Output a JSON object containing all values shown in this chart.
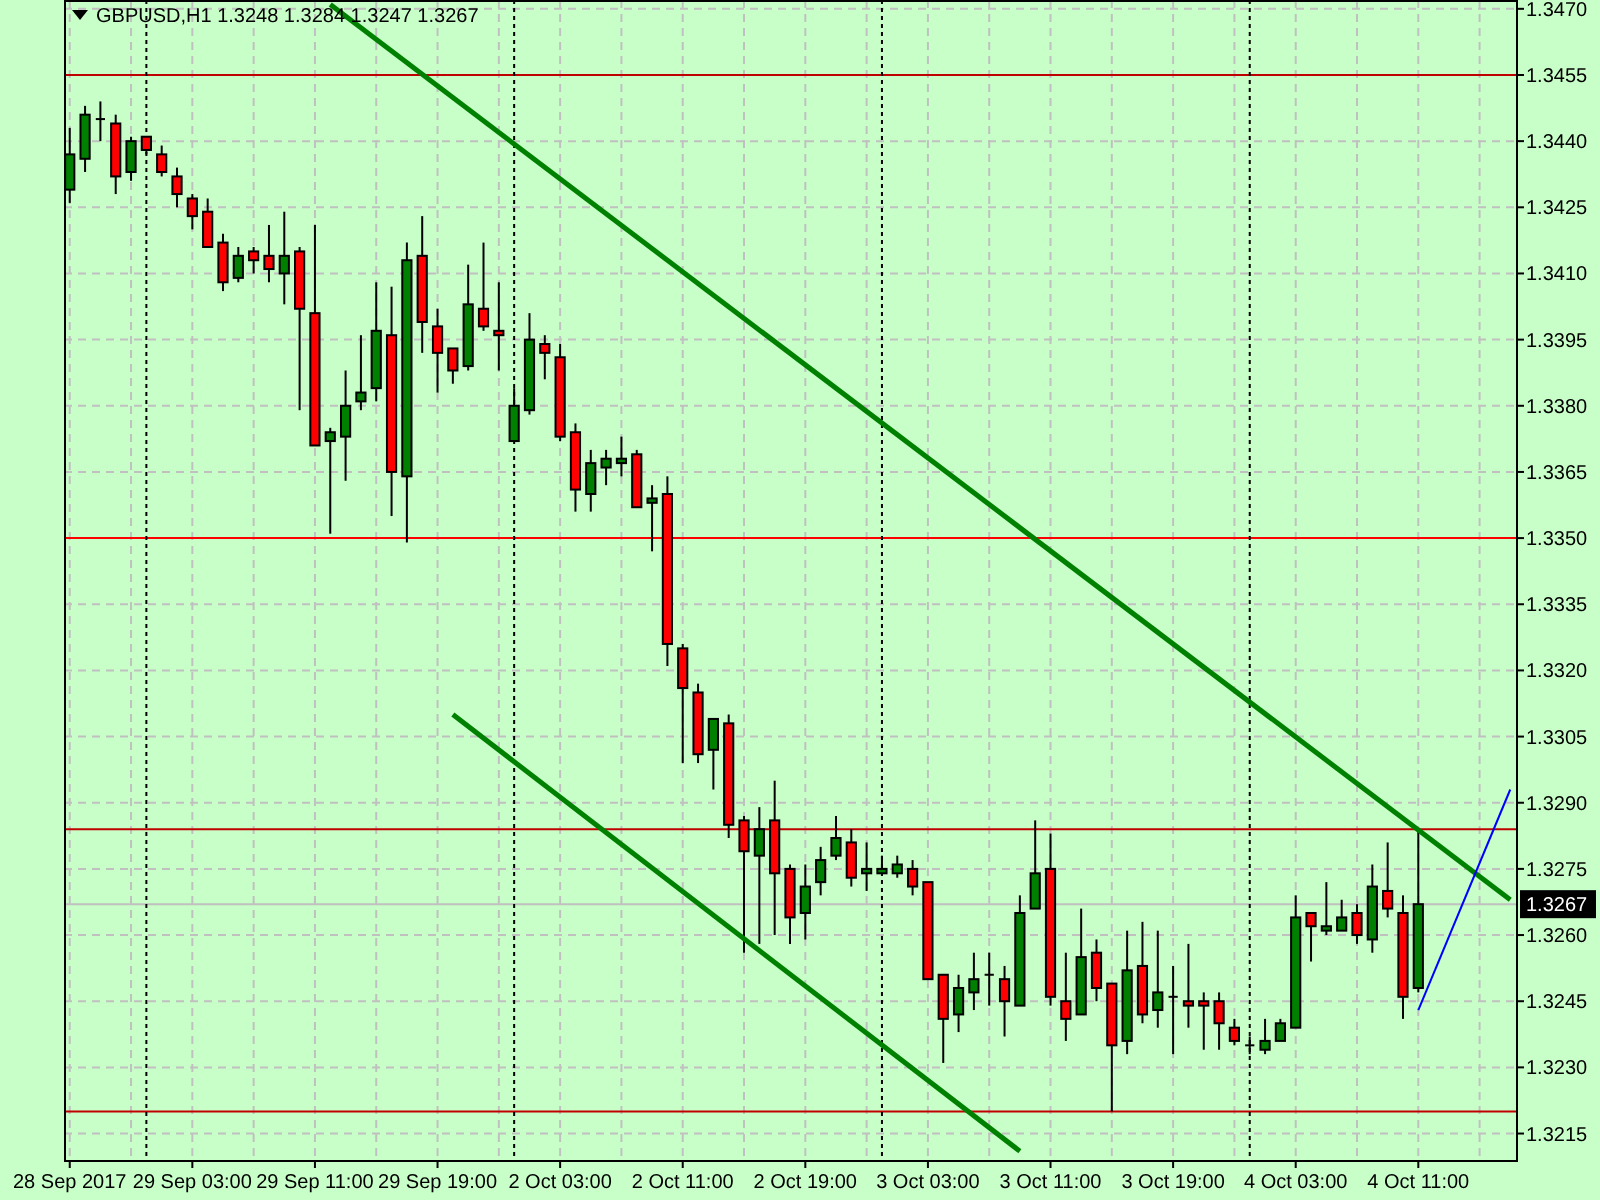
{
  "chart_data": {
    "type": "candlestick",
    "title": "GBPUSD,H1  1.3248 1.3284 1.3247 1.3267",
    "categories": [
      "28 Sep 2017",
      null,
      null,
      null,
      null,
      null,
      null,
      null,
      "29 Sep 03:00",
      null,
      null,
      null,
      null,
      null,
      null,
      null,
      "29 Sep 11:00",
      null,
      null,
      null,
      null,
      null,
      null,
      null,
      "29 Sep 19:00",
      null,
      null,
      null,
      null,
      null,
      null,
      null,
      "2 Oct 03:00",
      null,
      null,
      null,
      null,
      null,
      null,
      null,
      "2 Oct 11:00",
      null,
      null,
      null,
      null,
      null,
      null,
      null,
      "2 Oct 19:00",
      null,
      null,
      null,
      null,
      null,
      null,
      null,
      "3 Oct 03:00",
      null,
      null,
      null,
      null,
      null,
      null,
      null,
      "3 Oct 11:00",
      null,
      null,
      null,
      null,
      null,
      null,
      null,
      "3 Oct 19:00",
      null,
      null,
      null,
      null,
      null,
      null,
      null,
      "4 Oct 03:00",
      null,
      null,
      null,
      null,
      null,
      null,
      null,
      "4 Oct 11:00",
      null,
      null,
      null,
      null,
      null,
      null
    ],
    "ohlc": [
      [
        1.3429,
        1.3443,
        1.3426,
        1.3437
      ],
      [
        1.3436,
        1.3448,
        1.3433,
        1.3446
      ],
      [
        1.3445,
        1.3449,
        1.344,
        1.3445
      ],
      [
        1.3444,
        1.3446,
        1.3428,
        1.3432
      ],
      [
        1.3433,
        1.3441,
        1.3431,
        1.344
      ],
      [
        1.3441,
        1.3441,
        1.3437,
        1.3438
      ],
      [
        1.3437,
        1.3439,
        1.3432,
        1.3433
      ],
      [
        1.3432,
        1.3434,
        1.3425,
        1.3428
      ],
      [
        1.3427,
        1.3428,
        1.342,
        1.3423
      ],
      [
        1.3424,
        1.3427,
        1.3416,
        1.3416
      ],
      [
        1.3417,
        1.3419,
        1.3406,
        1.3408
      ],
      [
        1.3409,
        1.3416,
        1.3408,
        1.3414
      ],
      [
        1.3415,
        1.3416,
        1.341,
        1.3413
      ],
      [
        1.3414,
        1.3421,
        1.3408,
        1.3411
      ],
      [
        1.341,
        1.3424,
        1.3403,
        1.3414
      ],
      [
        1.3415,
        1.3416,
        1.3379,
        1.3402
      ],
      [
        1.3401,
        1.3421,
        1.3371,
        1.3371
      ],
      [
        1.3372,
        1.3375,
        1.3351,
        1.3374
      ],
      [
        1.3373,
        1.3388,
        1.3363,
        1.338
      ],
      [
        1.3381,
        1.3396,
        1.3379,
        1.3383
      ],
      [
        1.3384,
        1.3408,
        1.3381,
        1.3397
      ],
      [
        1.3396,
        1.3407,
        1.3355,
        1.3365
      ],
      [
        1.3364,
        1.3417,
        1.3349,
        1.3413
      ],
      [
        1.3414,
        1.3423,
        1.3392,
        1.3399
      ],
      [
        1.3398,
        1.3402,
        1.3383,
        1.3392
      ],
      [
        1.3393,
        1.3393,
        1.3385,
        1.3388
      ],
      [
        1.3389,
        1.3412,
        1.3388,
        1.3403
      ],
      [
        1.3402,
        1.3417,
        1.3397,
        1.3398
      ],
      [
        1.3397,
        1.3408,
        1.3388,
        1.3396
      ],
      [
        1.3372,
        1.3384,
        1.3372,
        1.338
      ],
      [
        1.3379,
        1.3401,
        1.3378,
        1.3395
      ],
      [
        1.3394,
        1.3396,
        1.3386,
        1.3392
      ],
      [
        1.3391,
        1.3394,
        1.3372,
        1.3373
      ],
      [
        1.3374,
        1.3376,
        1.3356,
        1.3361
      ],
      [
        1.336,
        1.337,
        1.3356,
        1.3367
      ],
      [
        1.3366,
        1.337,
        1.3362,
        1.3368
      ],
      [
        1.3367,
        1.3373,
        1.3364,
        1.3368
      ],
      [
        1.3369,
        1.337,
        1.3357,
        1.3357
      ],
      [
        1.3358,
        1.3362,
        1.3347,
        1.3359
      ],
      [
        1.336,
        1.3364,
        1.3321,
        1.3326
      ],
      [
        1.3325,
        1.3326,
        1.3299,
        1.3316
      ],
      [
        1.3315,
        1.3317,
        1.3299,
        1.3301
      ],
      [
        1.3302,
        1.3309,
        1.3293,
        1.3309
      ],
      [
        1.3308,
        1.331,
        1.3282,
        1.3285
      ],
      [
        1.3286,
        1.3287,
        1.3256,
        1.3279
      ],
      [
        1.3278,
        1.3289,
        1.3258,
        1.3284
      ],
      [
        1.3286,
        1.3295,
        1.326,
        1.3274
      ],
      [
        1.3275,
        1.3276,
        1.3258,
        1.3264
      ],
      [
        1.3265,
        1.3276,
        1.3259,
        1.3271
      ],
      [
        1.3272,
        1.328,
        1.3269,
        1.3277
      ],
      [
        1.3278,
        1.3287,
        1.3277,
        1.3282
      ],
      [
        1.3281,
        1.3284,
        1.3271,
        1.3273
      ],
      [
        1.3274,
        1.3281,
        1.327,
        1.3275
      ],
      [
        1.3274,
        1.3278,
        1.3274,
        1.3275
      ],
      [
        1.3274,
        1.3278,
        1.3273,
        1.3276
      ],
      [
        1.3275,
        1.3277,
        1.3269,
        1.3271
      ],
      [
        1.3272,
        1.3272,
        1.325,
        1.325
      ],
      [
        1.3251,
        1.3251,
        1.3231,
        1.3241
      ],
      [
        1.3242,
        1.3251,
        1.3238,
        1.3248
      ],
      [
        1.3247,
        1.3256,
        1.3243,
        1.325
      ],
      [
        1.3251,
        1.3256,
        1.3244,
        1.3251
      ],
      [
        1.325,
        1.3253,
        1.3237,
        1.3245
      ],
      [
        1.3244,
        1.3269,
        1.3244,
        1.3265
      ],
      [
        1.3266,
        1.3286,
        1.3266,
        1.3274
      ],
      [
        1.3275,
        1.3283,
        1.3244,
        1.3246
      ],
      [
        1.3245,
        1.3256,
        1.3236,
        1.3241
      ],
      [
        1.3242,
        1.3266,
        1.3242,
        1.3255
      ],
      [
        1.3256,
        1.3259,
        1.3245,
        1.3248
      ],
      [
        1.3249,
        1.3249,
        1.322,
        1.3235
      ],
      [
        1.3236,
        1.3261,
        1.3233,
        1.3252
      ],
      [
        1.3253,
        1.3263,
        1.324,
        1.3242
      ],
      [
        1.3243,
        1.3261,
        1.3239,
        1.3247
      ],
      [
        1.3246,
        1.3253,
        1.3233,
        1.3246
      ],
      [
        1.3245,
        1.3258,
        1.3239,
        1.3244
      ],
      [
        1.3245,
        1.3247,
        1.3234,
        1.3244
      ],
      [
        1.3245,
        1.3247,
        1.3234,
        1.324
      ],
      [
        1.3239,
        1.3241,
        1.3235,
        1.3236
      ],
      [
        1.3235,
        1.3237,
        1.3233,
        1.3235
      ],
      [
        1.3234,
        1.3241,
        1.3233,
        1.3236
      ],
      [
        1.3236,
        1.3241,
        1.3236,
        1.324
      ],
      [
        1.3239,
        1.3269,
        1.3239,
        1.3264
      ],
      [
        1.3265,
        1.3265,
        1.3254,
        1.3262
      ],
      [
        1.3261,
        1.3272,
        1.326,
        1.3262
      ],
      [
        1.3261,
        1.3268,
        1.3261,
        1.3264
      ],
      [
        1.3265,
        1.3267,
        1.3258,
        1.326
      ],
      [
        1.3259,
        1.3276,
        1.3256,
        1.3271
      ],
      [
        1.327,
        1.3281,
        1.3264,
        1.3266
      ],
      [
        1.3265,
        1.3269,
        1.3241,
        1.3246
      ],
      [
        1.3248,
        1.3284,
        1.3247,
        1.3267
      ],
      null,
      null,
      null,
      null,
      null,
      null
    ],
    "colors": [
      "#008000",
      "#008000",
      "#000000",
      "#ff0000",
      "#008000",
      "#ff0000",
      "#ff0000",
      "#ff0000",
      "#ff0000",
      "#ff0000",
      "#ff0000",
      "#008000",
      "#ff0000",
      "#ff0000",
      "#008000",
      "#ff0000",
      "#ff0000",
      "#008000",
      "#008000",
      "#008000",
      "#008000",
      "#ff0000",
      "#008000",
      "#ff0000",
      "#ff0000",
      "#ff0000",
      "#008000",
      "#ff0000",
      "#ff0000",
      "#008000",
      "#008000",
      "#ff0000",
      "#ff0000",
      "#ff0000",
      "#008000",
      "#008000",
      "#008000",
      "#ff0000",
      "#008000",
      "#ff0000",
      "#ff0000",
      "#ff0000",
      "#008000",
      "#ff0000",
      "#ff0000",
      "#008000",
      "#ff0000",
      "#ff0000",
      "#008000",
      "#008000",
      "#008000",
      "#ff0000",
      "#008000",
      "#008000",
      "#008000",
      "#ff0000",
      "#ff0000",
      "#ff0000",
      "#008000",
      "#008000",
      "#000000",
      "#ff0000",
      "#008000",
      "#008000",
      "#ff0000",
      "#ff0000",
      "#008000",
      "#ff0000",
      "#ff0000",
      "#008000",
      "#ff0000",
      "#008000",
      "#000000",
      "#ff0000",
      "#ff0000",
      "#ff0000",
      "#ff0000",
      "#000000",
      "#008000",
      "#008000",
      "#008000",
      "#ff0000",
      "#008000",
      "#008000",
      "#ff0000",
      "#008000",
      "#ff0000",
      "#ff0000",
      "#008000",
      null,
      null,
      null,
      null,
      null,
      null
    ],
    "series": [
      {
        "type": "line",
        "color": "#008000",
        "values": [
          null,
          null,
          null,
          null,
          null,
          null,
          null,
          null,
          null,
          null,
          null,
          null,
          null,
          null,
          null,
          null,
          null,
          1.3471,
          null,
          null,
          null,
          null,
          null,
          null,
          null,
          null,
          null,
          null,
          null,
          null,
          null,
          null,
          null,
          null,
          null,
          null,
          null,
          null,
          null,
          null,
          null,
          null,
          null,
          null,
          null,
          null,
          null,
          null,
          null,
          null,
          null,
          null,
          null,
          null,
          null,
          null,
          null,
          null,
          null,
          null,
          null,
          null,
          null,
          null,
          null,
          null,
          null,
          null,
          null,
          null,
          null,
          null,
          null,
          null,
          null,
          null,
          null,
          null,
          null,
          null,
          null,
          null,
          null,
          null,
          null,
          null,
          null,
          null,
          null,
          null,
          null,
          null,
          null,
          null,
          1.3268
        ]
      },
      {
        "type": "line",
        "color": "#008000",
        "values": [
          null,
          null,
          null,
          null,
          null,
          null,
          null,
          null,
          null,
          null,
          null,
          null,
          null,
          null,
          null,
          null,
          null,
          null,
          null,
          null,
          null,
          null,
          null,
          null,
          null,
          1.331,
          null,
          null,
          null,
          null,
          null,
          null,
          null,
          null,
          null,
          null,
          null,
          null,
          null,
          null,
          null,
          null,
          null,
          null,
          null,
          null,
          null,
          null,
          null,
          null,
          null,
          null,
          null,
          null,
          null,
          null,
          null,
          null,
          null,
          null,
          null,
          null,
          1.3211,
          null,
          null,
          null,
          null,
          null,
          null,
          null,
          null,
          null,
          null,
          null,
          null,
          null,
          null,
          null,
          null,
          null,
          null,
          null,
          null,
          null,
          null,
          null,
          null,
          null,
          null,
          null,
          null,
          null,
          null,
          null,
          null
        ]
      },
      {
        "type": "line",
        "color": "#0000ff",
        "values": [
          null,
          null,
          null,
          null,
          null,
          null,
          null,
          null,
          null,
          null,
          null,
          null,
          null,
          null,
          null,
          null,
          null,
          null,
          null,
          null,
          null,
          null,
          null,
          null,
          null,
          null,
          null,
          null,
          null,
          null,
          null,
          null,
          null,
          null,
          null,
          null,
          null,
          null,
          null,
          null,
          null,
          null,
          null,
          null,
          null,
          null,
          null,
          null,
          null,
          null,
          null,
          null,
          null,
          null,
          null,
          null,
          null,
          null,
          null,
          null,
          null,
          null,
          null,
          null,
          null,
          null,
          null,
          null,
          null,
          null,
          null,
          null,
          null,
          null,
          null,
          null,
          null,
          null,
          null,
          null,
          null,
          null,
          null,
          null,
          null,
          null,
          null,
          null,
          1.3243,
          null,
          null,
          null,
          null,
          null,
          1.3293
        ]
      }
    ],
    "ylim": [
      1.3209,
      1.3472
    ],
    "yticks": [
      1.3215,
      {
        "value": 1.323,
        "label": "1.3230"
      },
      1.3245,
      {
        "value": 1.326,
        "label": "1.3260"
      },
      1.3275,
      {
        "value": 1.329,
        "label": "1.3290"
      },
      1.3305,
      {
        "value": 1.332,
        "label": "1.3320"
      },
      1.3335,
      {
        "value": 1.335,
        "label": "1.3350"
      },
      1.3365,
      {
        "value": 1.338,
        "label": "1.3380"
      },
      1.3395,
      {
        "value": 1.341,
        "label": "1.3410"
      },
      1.3425,
      {
        "value": 1.344,
        "label": "1.3440"
      },
      1.3455,
      {
        "value": 1.347,
        "label": "1.3470"
      }
    ],
    "grid": true,
    "ref_lines": [
      {
        "axis": "y",
        "value": 1.3455,
        "color": "#c00000"
      },
      {
        "axis": "y",
        "value": 1.335,
        "color": "#ff0000"
      },
      {
        "axis": "y",
        "value": 1.3284,
        "color": "#c00000"
      },
      {
        "axis": "y",
        "value": 1.322,
        "color": "#c00000"
      },
      {
        "axis": "y",
        "value": 1.3267,
        "color": "#c0c0c0",
        "label": "1.3267"
      }
    ]
  }
}
